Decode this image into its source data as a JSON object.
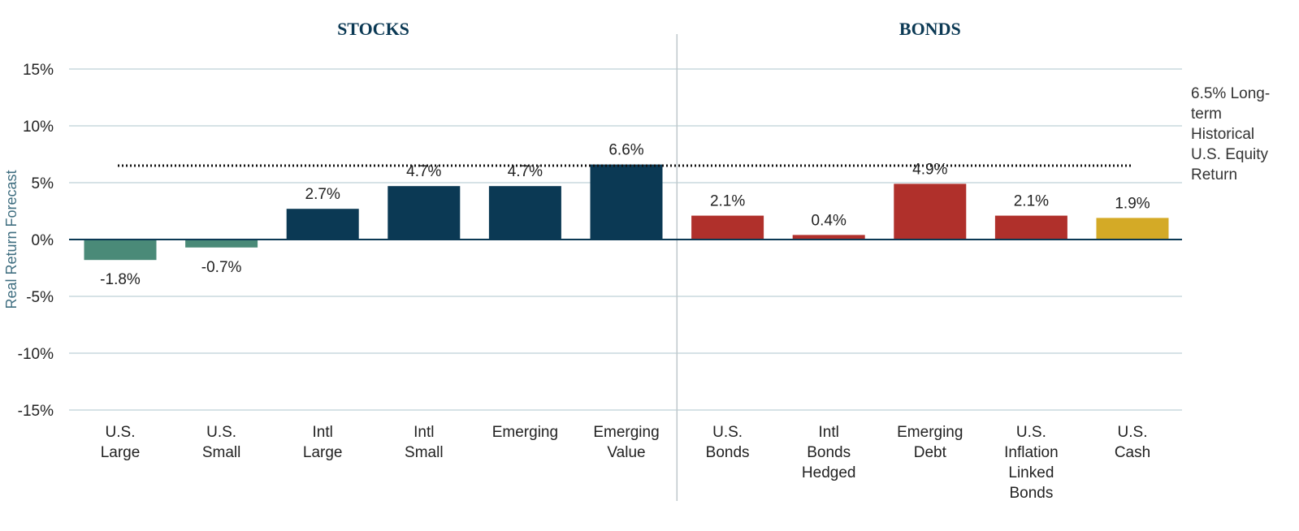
{
  "chart_data": {
    "type": "bar",
    "ylabel": "Real Return Forecast",
    "ylim": [
      -15,
      15
    ],
    "yticks": [
      15,
      10,
      5,
      0,
      -5,
      -10,
      -15
    ],
    "ytick_labels": [
      "15%",
      "10%",
      "5%",
      "0%",
      "-5%",
      "-10%",
      "-15%"
    ],
    "grid": true,
    "sections": [
      {
        "title": "STOCKS",
        "first": 0,
        "last": 5
      },
      {
        "title": "BONDS",
        "first": 6,
        "last": 10
      }
    ],
    "categories": [
      [
        "U.S.",
        "Large"
      ],
      [
        "U.S.",
        "Small"
      ],
      [
        "Intl",
        "Large"
      ],
      [
        "Intl",
        "Small"
      ],
      [
        "Emerging"
      ],
      [
        "Emerging",
        "Value"
      ],
      [
        "U.S.",
        "Bonds"
      ],
      [
        "Intl",
        "Bonds",
        "Hedged"
      ],
      [
        "Emerging",
        "Debt"
      ],
      [
        "U.S.",
        "Inflation",
        "Linked",
        "Bonds"
      ],
      [
        "U.S.",
        "Cash"
      ]
    ],
    "values": [
      -1.8,
      -0.7,
      2.7,
      4.7,
      4.7,
      6.6,
      2.1,
      0.4,
      4.9,
      2.1,
      1.9
    ],
    "value_labels": [
      "-1.8%",
      "-0.7%",
      "2.7%",
      "4.7%",
      "4.7%",
      "6.6%",
      "2.1%",
      "0.4%",
      "4.9%",
      "2.1%",
      "1.9%"
    ],
    "colors": [
      "#4a8a78",
      "#4a8a78",
      "#0b3954",
      "#0b3954",
      "#0b3954",
      "#0b3954",
      "#b0302b",
      "#b0302b",
      "#b0302b",
      "#b0302b",
      "#d4aa26"
    ],
    "reference_line": {
      "value": 6.5,
      "style": "dotted",
      "label_lines": [
        "6.5% Long-",
        "term",
        "Historical",
        "U.S. Equity",
        "Return"
      ]
    }
  }
}
